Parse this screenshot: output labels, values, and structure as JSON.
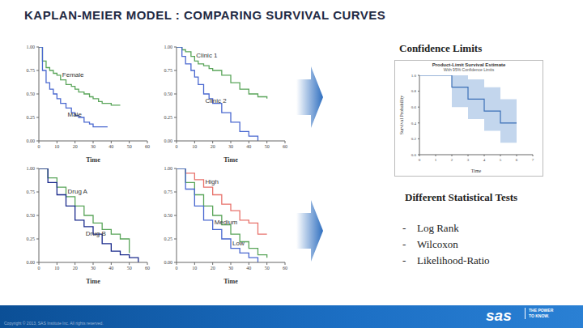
{
  "title": "KAPLAN-MEIER MODEL : COMPARING SURVIVAL CURVES",
  "chart_data": [
    {
      "type": "line",
      "line_style": "step",
      "x_label": "Time",
      "grid": false,
      "x": [
        0,
        2,
        4,
        6,
        8,
        10,
        12,
        15,
        18,
        20,
        22,
        25,
        28,
        30,
        33,
        35,
        38,
        40,
        42,
        45
      ],
      "xlim": [
        0,
        60
      ],
      "xticks": [
        0,
        10,
        20,
        30,
        40,
        50,
        60
      ],
      "ylim": [
        0,
        1
      ],
      "yticks": [
        {
          "value": 0,
          "label": "0.00"
        },
        0.25,
        {
          "value": 0.5,
          "label": "0.50"
        },
        0.75,
        {
          "value": 1,
          "label": "1.00"
        }
      ],
      "series": [
        {
          "name": "Female",
          "color": "#5aa55a",
          "values": [
            1.0,
            0.85,
            0.78,
            0.75,
            0.72,
            0.7,
            0.65,
            0.6,
            0.58,
            0.55,
            0.52,
            0.5,
            0.47,
            0.45,
            0.42,
            0.4,
            0.4,
            0.38,
            0.38,
            0.38
          ]
        },
        {
          "name": "Male",
          "color": "#4a68d0",
          "values": [
            1.0,
            0.75,
            0.62,
            0.55,
            0.5,
            0.45,
            0.4,
            0.35,
            0.3,
            0.27,
            0.25,
            0.2,
            0.18,
            0.15,
            0.15,
            0.15,
            0.15,
            null,
            null,
            null
          ]
        }
      ]
    },
    {
      "type": "line",
      "line_style": "step",
      "x_label": "Time",
      "grid": false,
      "x": [
        0,
        3,
        5,
        8,
        10,
        12,
        15,
        18,
        20,
        25,
        30,
        35,
        40,
        45,
        50
      ],
      "xlim": [
        0,
        60
      ],
      "xticks": [
        0,
        10,
        20,
        30,
        40,
        50,
        60
      ],
      "ylim": [
        0,
        1
      ],
      "yticks": [
        {
          "value": 0,
          "label": "0.00"
        },
        0.25,
        {
          "value": 0.5,
          "label": "0.50"
        },
        0.75,
        {
          "value": 1,
          "label": "1.00"
        }
      ],
      "series": [
        {
          "name": "Clinic 1",
          "color": "#5aa55a",
          "values": [
            1.0,
            0.97,
            0.95,
            0.9,
            0.85,
            0.82,
            0.8,
            0.77,
            0.75,
            0.7,
            0.62,
            0.55,
            0.5,
            0.47,
            0.45
          ]
        },
        {
          "name": "Clinic 2",
          "color": "#4a68d0",
          "values": [
            1.0,
            0.9,
            0.82,
            0.75,
            0.68,
            0.6,
            0.5,
            0.45,
            0.4,
            0.3,
            0.2,
            0.1,
            0.05,
            0.0,
            null
          ]
        }
      ]
    },
    {
      "type": "line",
      "line_style": "step",
      "x_label": "Time",
      "grid": false,
      "x": [
        0,
        5,
        10,
        15,
        20,
        25,
        30,
        35,
        40,
        45,
        50,
        55
      ],
      "xlim": [
        0,
        60
      ],
      "xticks": [
        0,
        10,
        20,
        30,
        40,
        50,
        60
      ],
      "ylim": [
        0,
        1
      ],
      "yticks": [
        {
          "value": 0,
          "label": "0.00"
        },
        0.25,
        {
          "value": 0.5,
          "label": "0.50"
        },
        0.75,
        {
          "value": 1,
          "label": "1.00"
        }
      ],
      "series": [
        {
          "name": "Drug A",
          "color": "#5aa55a",
          "values": [
            1.0,
            0.9,
            0.8,
            0.7,
            0.6,
            0.5,
            0.42,
            0.35,
            0.3,
            0.25,
            0.1,
            null
          ]
        },
        {
          "name": "Drug B",
          "color": "#1a2a8c",
          "values": [
            1.0,
            0.85,
            0.72,
            0.6,
            0.45,
            0.38,
            0.3,
            0.2,
            0.12,
            0.08,
            0.05,
            0.0
          ]
        }
      ]
    },
    {
      "type": "line",
      "line_style": "step",
      "x_label": "Time",
      "grid": false,
      "x": [
        0,
        5,
        10,
        15,
        20,
        25,
        30,
        35,
        40,
        45,
        50
      ],
      "xlim": [
        0,
        60
      ],
      "xticks": [
        0,
        10,
        20,
        30,
        40,
        50,
        60
      ],
      "ylim": [
        0,
        1
      ],
      "yticks": [
        {
          "value": 0,
          "label": "0.00"
        },
        0.25,
        {
          "value": 0.5,
          "label": "0.50"
        },
        0.75,
        {
          "value": 1,
          "label": "1.00"
        }
      ],
      "series": [
        {
          "name": "High",
          "color": "#e8736c",
          "values": [
            1.0,
            0.95,
            0.88,
            0.8,
            0.72,
            0.62,
            0.55,
            0.45,
            0.42,
            0.3,
            0.3
          ]
        },
        {
          "name": "Medium",
          "color": "#5aa55a",
          "values": [
            1.0,
            0.85,
            0.72,
            0.6,
            0.5,
            0.4,
            0.3,
            0.22,
            0.15,
            0.08,
            0.05
          ]
        },
        {
          "name": "Low",
          "color": "#4a68d0",
          "values": [
            1.0,
            0.78,
            0.6,
            0.45,
            0.35,
            0.25,
            0.15,
            0.1,
            0.05,
            0.0,
            null
          ]
        }
      ]
    },
    {
      "type": "line",
      "line_style": "step",
      "title": "Product-Limit Survival Estimate",
      "subtitle": "With 95% Confidence Limits",
      "x_label": "Time",
      "y_label": "Survival Probability",
      "grid": false,
      "x": [
        0,
        2,
        3,
        4,
        5,
        6
      ],
      "xlim": [
        0,
        7
      ],
      "xticks": [
        0,
        1,
        2,
        3,
        4,
        5,
        6,
        7
      ],
      "ylim": [
        0,
        1
      ],
      "yticks": [
        {
          "value": 0,
          "label": "0.0"
        },
        0.2,
        0.4,
        0.6,
        0.8,
        {
          "value": 1,
          "label": "1.0"
        }
      ],
      "values": [
        1.0,
        0.85,
        0.7,
        0.55,
        0.4,
        0.4
      ],
      "color": "#3b6fb6",
      "lower": [
        null,
        0.6,
        0.45,
        0.3,
        0.15,
        0.15
      ],
      "upper": [
        null,
        1.0,
        0.95,
        0.85,
        0.7,
        0.7
      ],
      "band_color": "#a9c4e6"
    }
  ],
  "headings": {
    "confidence": "Confidence Limits",
    "tests": "Different Statistical Tests"
  },
  "tests": [
    "Log Rank",
    "Wilcoxon",
    "Likelihood-Ratio"
  ],
  "footer": {
    "copyright": "Copyright © 2013, SAS Institute Inc. All rights reserved.",
    "logo": "sas",
    "tagline": "THE POWER TO KNOW."
  }
}
